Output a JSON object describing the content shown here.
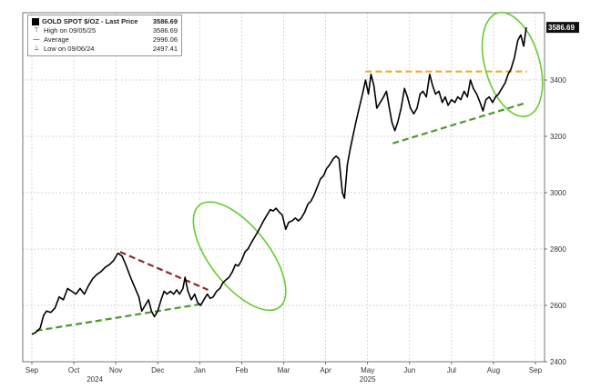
{
  "legend": {
    "series_label": "GOLD SPOT $/OZ - Last Price",
    "series_value": "3586.69",
    "high_label": "High on 09/05/25",
    "high_value": "3586.69",
    "avg_label": "Average",
    "avg_value": "2996.06",
    "low_label": "Low on 09/06/24",
    "low_value": "2497.41"
  },
  "last_price_tag": "3586.69",
  "colors": {
    "price_line": "#000000",
    "support_green": "#4b9a2a",
    "resistance_red": "#8b2a2a",
    "resistance_orange": "#f0a830",
    "ellipse_green": "#66cc33",
    "grid": "#c8c8c8",
    "tag_bg": "#111111"
  },
  "chart_data": {
    "type": "line",
    "title": "",
    "xlabel": "",
    "ylabel": "",
    "ylim": [
      2400,
      3600
    ],
    "y_ticks": [
      "2400",
      "2600",
      "2800",
      "3000",
      "3200",
      "3400"
    ],
    "x_ticks": [
      "Sep",
      "Oct",
      "Nov",
      "Dec",
      "Jan",
      "Feb",
      "Mar",
      "Apr",
      "May",
      "Jun",
      "Jul",
      "Aug",
      "Sep"
    ],
    "x_year_labels": [
      {
        "label": "2024",
        "after_month_index": 1.5
      },
      {
        "label": "2025",
        "after_month_index": 8
      }
    ],
    "grid": true,
    "legend_placement": "top-left",
    "series": [
      {
        "values": [
          [
            0.0,
            2497
          ],
          [
            0.1,
            2505
          ],
          [
            0.2,
            2520
          ],
          [
            0.28,
            2565
          ],
          [
            0.35,
            2580
          ],
          [
            0.45,
            2575
          ],
          [
            0.55,
            2590
          ],
          [
            0.65,
            2630
          ],
          [
            0.75,
            2620
          ],
          [
            0.85,
            2660
          ],
          [
            0.95,
            2650
          ],
          [
            1.05,
            2640
          ],
          [
            1.15,
            2660
          ],
          [
            1.25,
            2640
          ],
          [
            1.35,
            2670
          ],
          [
            1.45,
            2695
          ],
          [
            1.55,
            2710
          ],
          [
            1.65,
            2720
          ],
          [
            1.75,
            2735
          ],
          [
            1.85,
            2745
          ],
          [
            1.95,
            2760
          ],
          [
            2.05,
            2785
          ],
          [
            2.15,
            2775
          ],
          [
            2.25,
            2740
          ],
          [
            2.35,
            2700
          ],
          [
            2.45,
            2665
          ],
          [
            2.55,
            2630
          ],
          [
            2.62,
            2580
          ],
          [
            2.7,
            2600
          ],
          [
            2.78,
            2620
          ],
          [
            2.85,
            2580
          ],
          [
            2.92,
            2560
          ],
          [
            3.0,
            2580
          ],
          [
            3.08,
            2620
          ],
          [
            3.15,
            2650
          ],
          [
            3.22,
            2640
          ],
          [
            3.3,
            2650
          ],
          [
            3.38,
            2640
          ],
          [
            3.45,
            2655
          ],
          [
            3.52,
            2640
          ],
          [
            3.6,
            2660
          ],
          [
            3.65,
            2700
          ],
          [
            3.72,
            2650
          ],
          [
            3.8,
            2620
          ],
          [
            3.88,
            2640
          ],
          [
            3.95,
            2610
          ],
          [
            4.02,
            2600
          ],
          [
            4.1,
            2620
          ],
          [
            4.18,
            2640
          ],
          [
            4.25,
            2625
          ],
          [
            4.32,
            2630
          ],
          [
            4.4,
            2650
          ],
          [
            4.48,
            2660
          ],
          [
            4.55,
            2680
          ],
          [
            4.62,
            2690
          ],
          [
            4.7,
            2700
          ],
          [
            4.78,
            2720
          ],
          [
            4.85,
            2745
          ],
          [
            4.92,
            2740
          ],
          [
            5.0,
            2760
          ],
          [
            5.08,
            2790
          ],
          [
            5.15,
            2800
          ],
          [
            5.22,
            2820
          ],
          [
            5.3,
            2840
          ],
          [
            5.38,
            2860
          ],
          [
            5.45,
            2880
          ],
          [
            5.52,
            2900
          ],
          [
            5.6,
            2920
          ],
          [
            5.68,
            2940
          ],
          [
            5.75,
            2935
          ],
          [
            5.82,
            2945
          ],
          [
            5.9,
            2930
          ],
          [
            5.97,
            2920
          ],
          [
            6.05,
            2870
          ],
          [
            6.12,
            2895
          ],
          [
            6.2,
            2900
          ],
          [
            6.28,
            2910
          ],
          [
            6.35,
            2900
          ],
          [
            6.42,
            2910
          ],
          [
            6.5,
            2930
          ],
          [
            6.58,
            2960
          ],
          [
            6.65,
            2970
          ],
          [
            6.72,
            2990
          ],
          [
            6.8,
            3020
          ],
          [
            6.88,
            3050
          ],
          [
            6.95,
            3060
          ],
          [
            7.02,
            3085
          ],
          [
            7.1,
            3100
          ],
          [
            7.18,
            3120
          ],
          [
            7.25,
            3130
          ],
          [
            7.32,
            3120
          ],
          [
            7.4,
            3000
          ],
          [
            7.45,
            2980
          ],
          [
            7.52,
            3100
          ],
          [
            7.58,
            3150
          ],
          [
            7.65,
            3200
          ],
          [
            7.72,
            3250
          ],
          [
            7.8,
            3300
          ],
          [
            7.88,
            3350
          ],
          [
            7.95,
            3400
          ],
          [
            8.02,
            3350
          ],
          [
            8.08,
            3420
          ],
          [
            8.15,
            3380
          ],
          [
            8.22,
            3300
          ],
          [
            8.3,
            3320
          ],
          [
            8.38,
            3340
          ],
          [
            8.45,
            3360
          ],
          [
            8.52,
            3300
          ],
          [
            8.58,
            3250
          ],
          [
            8.65,
            3220
          ],
          [
            8.72,
            3250
          ],
          [
            8.8,
            3300
          ],
          [
            8.88,
            3370
          ],
          [
            8.95,
            3340
          ],
          [
            9.02,
            3300
          ],
          [
            9.1,
            3280
          ],
          [
            9.18,
            3300
          ],
          [
            9.25,
            3350
          ],
          [
            9.32,
            3360
          ],
          [
            9.4,
            3340
          ],
          [
            9.48,
            3420
          ],
          [
            9.55,
            3380
          ],
          [
            9.62,
            3350
          ],
          [
            9.7,
            3360
          ],
          [
            9.78,
            3320
          ],
          [
            9.85,
            3340
          ],
          [
            9.92,
            3310
          ],
          [
            10.0,
            3330
          ],
          [
            10.08,
            3320
          ],
          [
            10.15,
            3340
          ],
          [
            10.22,
            3330
          ],
          [
            10.3,
            3360
          ],
          [
            10.38,
            3340
          ],
          [
            10.45,
            3400
          ],
          [
            10.52,
            3370
          ],
          [
            10.6,
            3350
          ],
          [
            10.68,
            3320
          ],
          [
            10.75,
            3290
          ],
          [
            10.82,
            3330
          ],
          [
            10.9,
            3340
          ],
          [
            10.98,
            3320
          ],
          [
            11.05,
            3340
          ],
          [
            11.12,
            3350
          ],
          [
            11.2,
            3370
          ],
          [
            11.28,
            3390
          ],
          [
            11.35,
            3420
          ],
          [
            11.42,
            3440
          ],
          [
            11.5,
            3480
          ],
          [
            11.58,
            3540
          ],
          [
            11.65,
            3560
          ],
          [
            11.72,
            3520
          ],
          [
            11.78,
            3586.69
          ]
        ]
      }
    ],
    "annotations": [
      {
        "type": "support_line",
        "color": "green",
        "from": [
          0.1,
          2510
        ],
        "to": [
          4.05,
          2605
        ]
      },
      {
        "type": "resistance_line",
        "color": "red",
        "from": [
          2.1,
          2790
        ],
        "to": [
          4.2,
          2655
        ]
      },
      {
        "type": "support_line",
        "color": "green",
        "from": [
          8.6,
          3175
        ],
        "to": [
          11.8,
          3320
        ]
      },
      {
        "type": "resistance_line",
        "color": "orange",
        "from": [
          7.95,
          3430
        ],
        "to": [
          11.8,
          3430
        ]
      },
      {
        "type": "ellipse",
        "color": "green",
        "center": [
          4.95,
          2775
        ],
        "rx_months": 0.7,
        "ry": 230,
        "rotate_deg": -38
      },
      {
        "type": "ellipse",
        "color": "green",
        "center": [
          11.45,
          3455
        ],
        "rx_months": 0.65,
        "ry": 190,
        "rotate_deg": -16
      }
    ]
  }
}
